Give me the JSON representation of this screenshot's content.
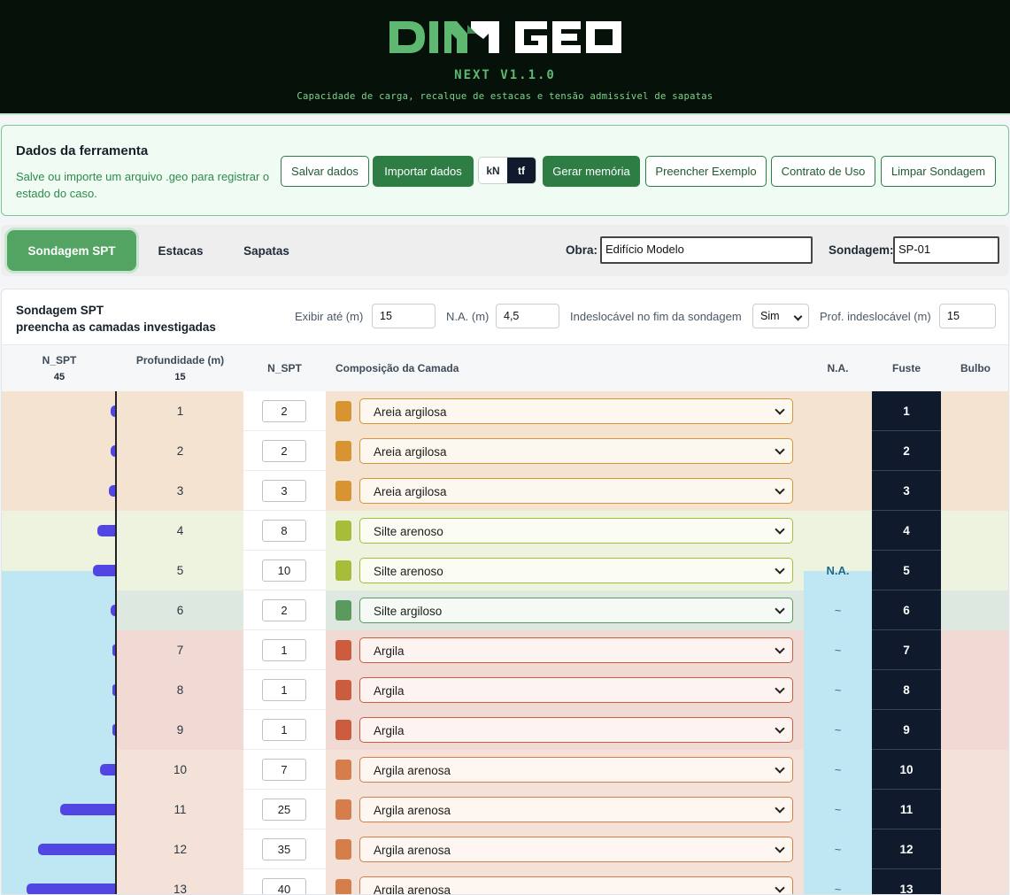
{
  "header": {
    "logo_text_left": "DI",
    "logo_text_right": "GEO",
    "version": "NEXT V1.1.0",
    "tagline": "Capacidade de carga, recalque de estacas e tensão admissível de sapatas",
    "colors": {
      "background": "#061209",
      "logo_green": "#5fb871"
    }
  },
  "tool_panel": {
    "title": "Dados da ferramenta",
    "description": "Salve ou importe um arquivo .geo para registrar o estado do caso.",
    "buttons": {
      "save": "Salvar dados",
      "import": "Importar dados",
      "memory": "Gerar memória",
      "example": "Preencher Exemplo",
      "contract": "Contrato de Uso",
      "clear": "Limpar Sondagem"
    },
    "units": {
      "kn": "kN",
      "tf": "tf",
      "selected": "tf"
    }
  },
  "tabs": {
    "items": [
      "Sondagem SPT",
      "Estacas",
      "Sapatas"
    ],
    "active": "Sondagem SPT",
    "obra_label": "Obra:",
    "obra_value": "Edifício Modelo",
    "sondagem_label": "Sondagem:",
    "sondagem_value": "SP-01"
  },
  "spt_panel": {
    "title_line1": "Sondagem SPT",
    "title_line2": "preencha as camadas investigadas",
    "controls": {
      "exibir_label": "Exibir até (m)",
      "exibir_value": "15",
      "na_label": "N.A. (m)",
      "na_value": "4,5",
      "indesl_label": "Indeslocável no fim da sondagem",
      "indesl_value": "Sim",
      "prof_indesl_label": "Prof. indeslocável (m)",
      "prof_indesl_value": "15"
    },
    "columns": {
      "nspt_chart": "N_SPT",
      "nspt_chart_max": "45",
      "profundidade": "Profundidade (m)",
      "profundidade_max": "15",
      "nspt": "N_SPT",
      "composicao": "Composição da Camada",
      "na": "N.A.",
      "fuste": "Fuste",
      "bulbo": "Bulbo"
    },
    "water_table_depth_m": 4.5,
    "na_marker": "N.A.",
    "na_below": "~",
    "rows": [
      {
        "depth": "1",
        "nspt": "2",
        "soil": "Areia argilosa",
        "swatch": "#d99432",
        "border": "#d99432",
        "tint": "#f3e3d0",
        "sel_bg": "#fdf8ef",
        "na": ""
      },
      {
        "depth": "2",
        "nspt": "2",
        "soil": "Areia argilosa",
        "swatch": "#d99432",
        "border": "#d99432",
        "tint": "#f3e3d0",
        "sel_bg": "#fdf8ef",
        "na": ""
      },
      {
        "depth": "3",
        "nspt": "3",
        "soil": "Areia argilosa",
        "swatch": "#d99432",
        "border": "#d99432",
        "tint": "#f3e3d0",
        "sel_bg": "#fdf8ef",
        "na": ""
      },
      {
        "depth": "4",
        "nspt": "8",
        "soil": "Silte arenoso",
        "swatch": "#a7bd3a",
        "border": "#a7bd3a",
        "tint": "#eef3df",
        "sel_bg": "#fbfcf4",
        "na": ""
      },
      {
        "depth": "5",
        "nspt": "10",
        "soil": "Silte arenoso",
        "swatch": "#a7bd3a",
        "border": "#a7bd3a",
        "tint": "#eef3df",
        "sel_bg": "#fbfcf4",
        "na": "N.A."
      },
      {
        "depth": "6",
        "nspt": "2",
        "soil": "Silte argiloso",
        "swatch": "#5a9a5f",
        "border": "#5a9a5f",
        "tint": "#dde9e0",
        "sel_bg": "#f5faf6",
        "na": "~"
      },
      {
        "depth": "7",
        "nspt": "1",
        "soil": "Argila",
        "swatch": "#cb5d3e",
        "border": "#cb5d3e",
        "tint": "#f1d9d4",
        "sel_bg": "#fdf3f1",
        "na": "~"
      },
      {
        "depth": "8",
        "nspt": "1",
        "soil": "Argila",
        "swatch": "#cb5d3e",
        "border": "#cb5d3e",
        "tint": "#f1d9d4",
        "sel_bg": "#fdf3f1",
        "na": "~"
      },
      {
        "depth": "9",
        "nspt": "1",
        "soil": "Argila",
        "swatch": "#cb5d3e",
        "border": "#cb5d3e",
        "tint": "#f1d9d4",
        "sel_bg": "#fdf3f1",
        "na": "~"
      },
      {
        "depth": "10",
        "nspt": "7",
        "soil": "Argila arenosa",
        "swatch": "#d67e4b",
        "border": "#d67e4b",
        "tint": "#f4e2d8",
        "sel_bg": "#fdf6f1",
        "na": "~"
      },
      {
        "depth": "11",
        "nspt": "25",
        "soil": "Argila arenosa",
        "swatch": "#d67e4b",
        "border": "#d67e4b",
        "tint": "#f4e2d8",
        "sel_bg": "#fdf6f1",
        "na": "~"
      },
      {
        "depth": "12",
        "nspt": "35",
        "soil": "Argila arenosa",
        "swatch": "#d67e4b",
        "border": "#d67e4b",
        "tint": "#f4e2d8",
        "sel_bg": "#fdf6f1",
        "na": "~"
      },
      {
        "depth": "13",
        "nspt": "40",
        "soil": "Argila arenosa",
        "swatch": "#d67e4b",
        "border": "#d67e4b",
        "tint": "#f4e2d8",
        "sel_bg": "#fdf6f1",
        "na": "~"
      }
    ],
    "colors": {
      "bar": "#5146e3",
      "water": "#bfe6f3",
      "fuste_bg": "#0f1b2d"
    }
  }
}
